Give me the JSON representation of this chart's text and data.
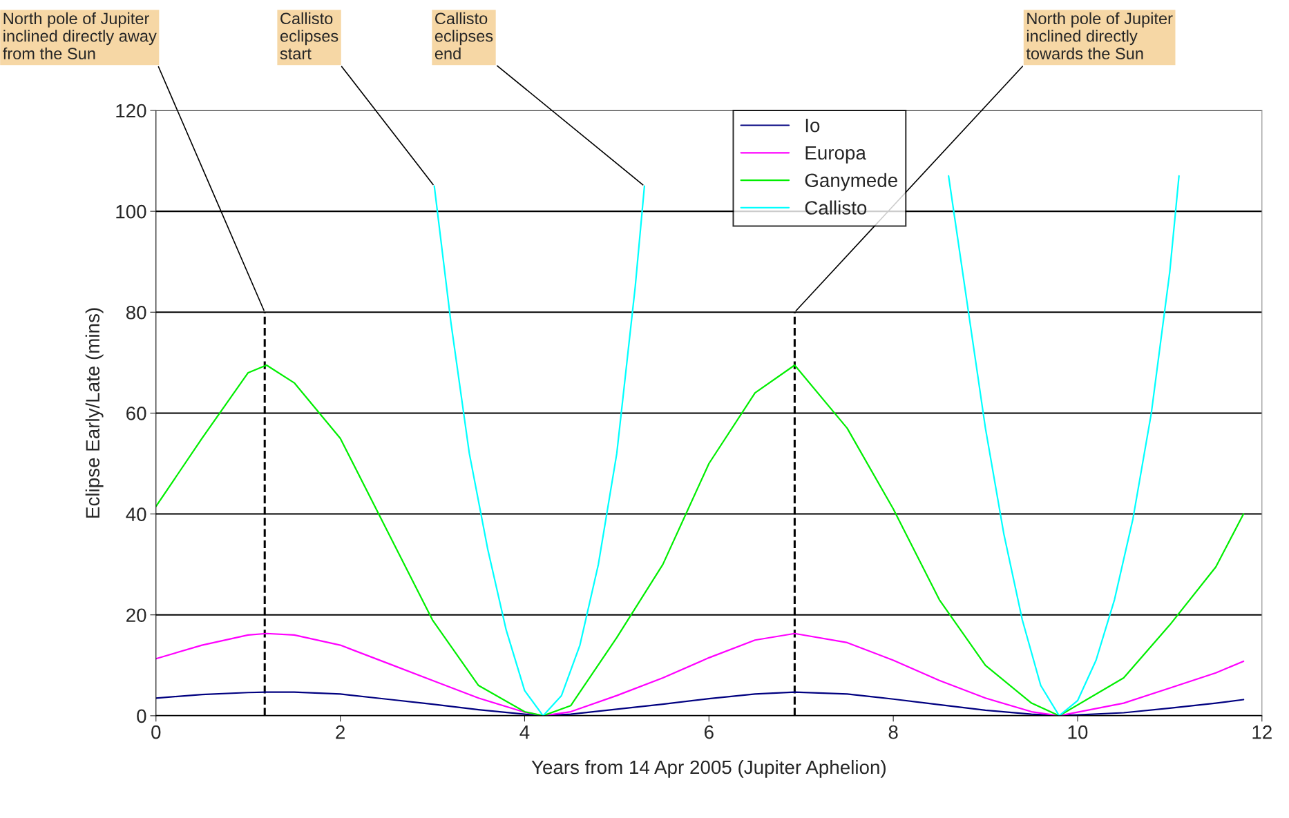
{
  "chart_data": {
    "type": "line",
    "xlabel": "Years from 14 Apr 2005 (Jupiter Aphelion)",
    "ylabel": "Eclipse Early/Late (mins)",
    "xlim": [
      0,
      12
    ],
    "xticks": [
      0,
      2,
      4,
      6,
      8,
      10,
      12
    ],
    "ylim": [
      0,
      120
    ],
    "yticks": [
      0,
      20,
      40,
      60,
      80,
      100,
      120
    ],
    "grid": "y",
    "legend": "top",
    "marker": "none",
    "line_style": "solid",
    "series": [
      {
        "name": "Io",
        "color": "#000080",
        "x": [
          0,
          0.5,
          1,
          1.2,
          1.5,
          2,
          2.5,
          3,
          3.5,
          4,
          4.2,
          4.5,
          5,
          5.5,
          6,
          6.5,
          6.93,
          7.5,
          8,
          8.5,
          9,
          9.5,
          9.8,
          10.5,
          11,
          11.5,
          11.8
        ],
        "values": [
          3.5,
          4.2,
          4.6,
          4.7,
          4.7,
          4.3,
          3.3,
          2.3,
          1.2,
          0.3,
          0,
          0.3,
          1.3,
          2.3,
          3.4,
          4.3,
          4.7,
          4.3,
          3.3,
          2.2,
          1.1,
          0.3,
          0,
          0.6,
          1.5,
          2.5,
          3.2
        ]
      },
      {
        "name": "Europa",
        "color": "#ff00ff",
        "x": [
          0,
          0.5,
          1,
          1.2,
          1.5,
          2,
          2.5,
          3,
          3.5,
          4,
          4.2,
          4.5,
          5,
          5.5,
          6,
          6.5,
          6.93,
          7.5,
          8,
          8.5,
          9,
          9.5,
          9.8,
          10.5,
          11,
          11.5,
          11.8
        ],
        "values": [
          11.3,
          14,
          16,
          16.3,
          16,
          14,
          10.5,
          7,
          3.5,
          0.7,
          0,
          0.8,
          4,
          7.5,
          11.5,
          15,
          16.3,
          14.5,
          11,
          7,
          3.5,
          0.8,
          0,
          2.5,
          5.5,
          8.5,
          10.8
        ]
      },
      {
        "name": "Ganymede",
        "color": "#00ee00",
        "x": [
          0,
          0.5,
          1,
          1.2,
          1.5,
          2,
          2.5,
          3,
          3.5,
          4,
          4.2,
          4.5,
          5,
          5.5,
          6,
          6.5,
          6.93,
          7.5,
          8,
          8.5,
          9,
          9.5,
          9.8,
          10.5,
          11,
          11.5,
          11.8
        ],
        "values": [
          41.5,
          55,
          68,
          69.5,
          66,
          55,
          37,
          19,
          6,
          0.8,
          0,
          2,
          15.5,
          30,
          50,
          64,
          69.5,
          57,
          41,
          23,
          10,
          2.5,
          0,
          7.5,
          18,
          29.5,
          40
        ]
      },
      {
        "name": "Callisto",
        "color": "#00ffff",
        "x": [
          3.02,
          3.2,
          3.4,
          3.6,
          3.8,
          4.0,
          4.2,
          4.4,
          4.6,
          4.8,
          5.0,
          5.2,
          5.3,
          7,
          8.6,
          8.8,
          9.0,
          9.2,
          9.4,
          9.6,
          9.8,
          10.0,
          10.2,
          10.4,
          10.6,
          10.8,
          11.0,
          11.1
        ],
        "values": [
          105,
          78,
          52,
          33,
          17,
          5,
          0,
          4,
          14,
          30,
          52,
          85,
          105,
          null,
          107,
          82,
          57,
          36,
          19,
          6,
          0,
          3,
          11,
          23,
          39,
          60,
          88,
          107
        ]
      }
    ],
    "ref_lines": [
      {
        "axis": "x",
        "value": 1.18,
        "line_style": "dashed",
        "color": "#000000"
      },
      {
        "axis": "x",
        "value": 6.93,
        "line_style": "dashed",
        "color": "#000000"
      }
    ],
    "annotations": [
      {
        "text": "North pole of Jupiter\ninclined directly away\nfrom the Sun",
        "x": 1.18,
        "y": 80
      },
      {
        "text": "Callisto\neclipses\nstart",
        "x": 3.02,
        "y": 105
      },
      {
        "text": "Callisto\neclipses\nend",
        "x": 5.3,
        "y": 105
      },
      {
        "text": "North pole of Jupiter\ninclined directly\ntowards the Sun",
        "x": 6.93,
        "y": 80
      }
    ]
  }
}
